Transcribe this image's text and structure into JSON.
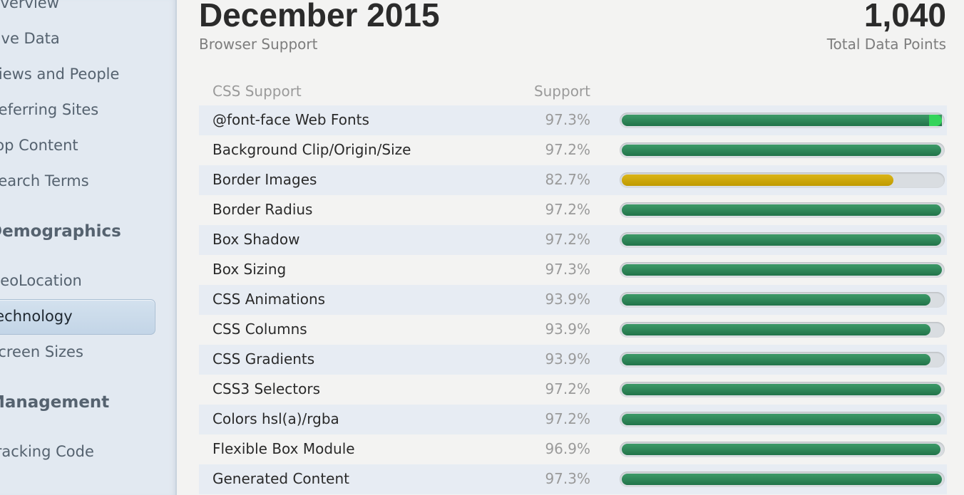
{
  "sidebar": {
    "items_top": [
      "Overview",
      "Live Data",
      "Views and People",
      "Referring Sites",
      "Top Content",
      "Search Terms"
    ],
    "section_demographics": "Demographics",
    "items_demographics": [
      "GeoLocation",
      "Technology",
      "Screen Sizes"
    ],
    "section_management": "Management",
    "items_management": [
      "Tracking Code"
    ],
    "selected": "Technology"
  },
  "header": {
    "title": "December 2015",
    "subtitle": "Browser Support",
    "total": "1,040",
    "total_label": "Total Data Points"
  },
  "table": {
    "col_name": "CSS Support",
    "col_support": "Support",
    "rows": [
      {
        "name": "@font-face Web Fonts",
        "pct": "97.3%",
        "value": 97.3,
        "highlight": true
      },
      {
        "name": "Background Clip/Origin/Size",
        "pct": "97.2%",
        "value": 97.2
      },
      {
        "name": "Border Images",
        "pct": "82.7%",
        "value": 82.7,
        "warn": true
      },
      {
        "name": "Border Radius",
        "pct": "97.2%",
        "value": 97.2
      },
      {
        "name": "Box Shadow",
        "pct": "97.2%",
        "value": 97.2
      },
      {
        "name": "Box Sizing",
        "pct": "97.3%",
        "value": 97.3
      },
      {
        "name": "CSS Animations",
        "pct": "93.9%",
        "value": 93.9
      },
      {
        "name": "CSS Columns",
        "pct": "93.9%",
        "value": 93.9
      },
      {
        "name": "CSS Gradients",
        "pct": "93.9%",
        "value": 93.9
      },
      {
        "name": "CSS3 Selectors",
        "pct": "97.2%",
        "value": 97.2
      },
      {
        "name": "Colors hsl(a)/rgba",
        "pct": "97.2%",
        "value": 97.2
      },
      {
        "name": "Flexible Box Module",
        "pct": "96.9%",
        "value": 96.9
      },
      {
        "name": "Generated Content",
        "pct": "97.3%",
        "value": 97.3
      }
    ]
  },
  "colors": {
    "bar_green": "#22744a",
    "bar_yellow": "#c9a300",
    "bar_highlight_tip": "#33d45a"
  }
}
